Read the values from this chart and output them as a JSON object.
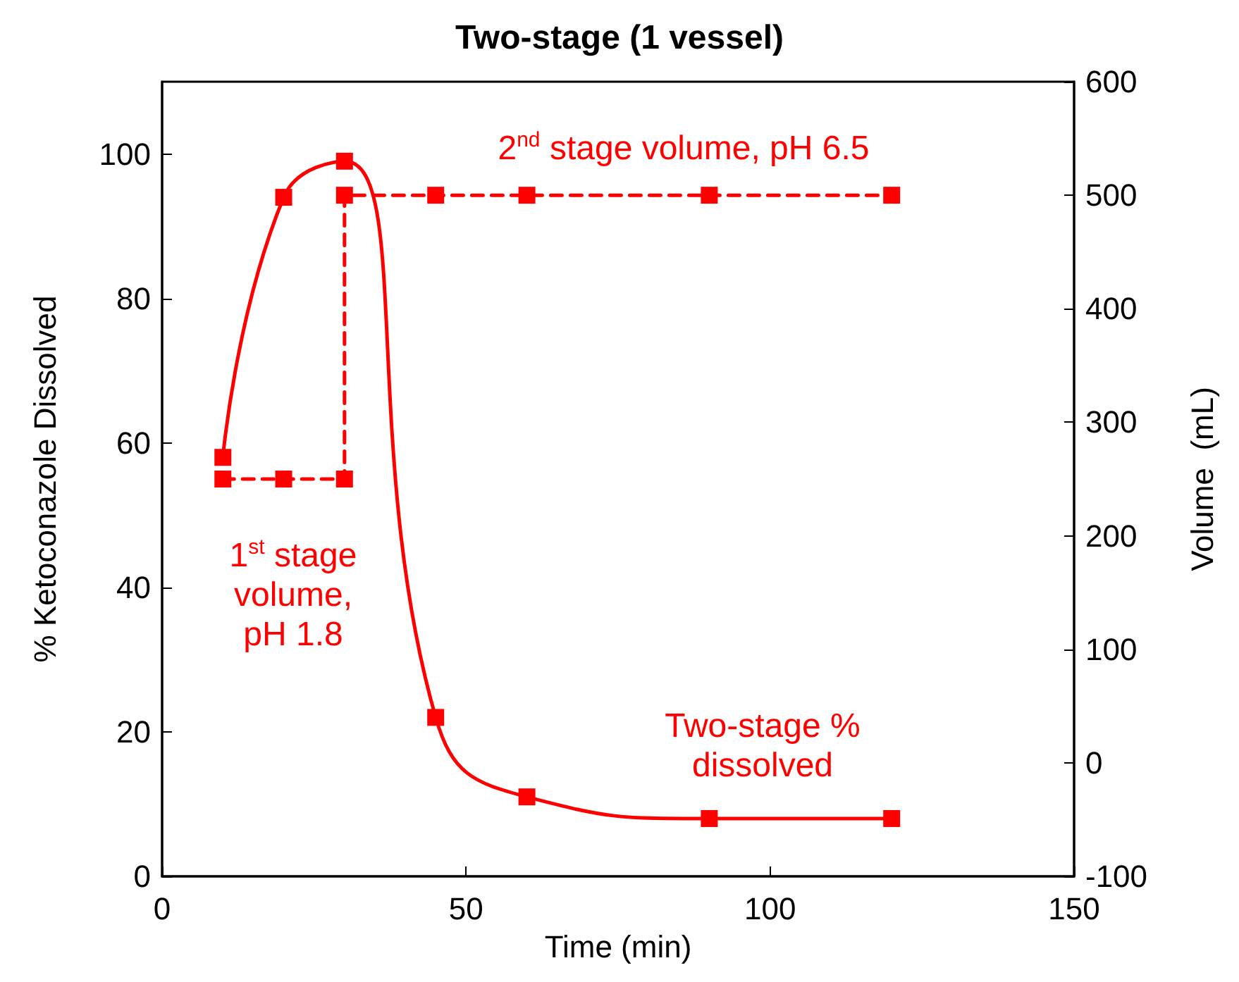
{
  "chart_data": {
    "type": "line",
    "title": "Two-stage (1 vessel)",
    "xlabel": "Time (min)",
    "ylabel": "% Ketoconazole Dissolved",
    "y2label": "Volume  (mL)",
    "xlim": [
      0,
      150
    ],
    "xticks": [
      0,
      50,
      100,
      150
    ],
    "ylim": [
      0,
      110
    ],
    "yticks": [
      0,
      20,
      40,
      60,
      80,
      100
    ],
    "y2lim": [
      -100,
      600
    ],
    "y2ticks": [
      -100,
      0,
      100,
      200,
      300,
      400,
      500,
      600
    ],
    "series": [
      {
        "color": "#ff0000",
        "x": [
          10,
          20,
          30,
          45,
          60,
          90,
          120
        ],
        "values": [
          58,
          94,
          99,
          22,
          11,
          8,
          8
        ],
        "line_style": "solid"
      },
      {
        "color": "#ff0000",
        "axis": "y2",
        "x": [
          10,
          20,
          30,
          30,
          45,
          60,
          90,
          120
        ],
        "values": [
          250,
          250,
          250,
          500,
          500,
          500,
          500,
          500
        ],
        "line_style": "dashed"
      }
    ],
    "marker": "square",
    "grid": false,
    "annotations": [
      "2$^{nd}$ stage volume, pH 6.5",
      "1$^{st}$ stage volume, pH 1.8",
      "Two-stage % dissolved"
    ]
  }
}
